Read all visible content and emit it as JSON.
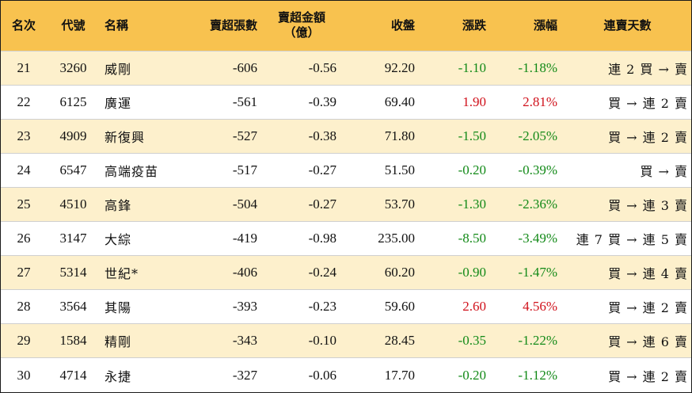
{
  "headers": {
    "rank": "名次",
    "code": "代號",
    "name": "名稱",
    "sell_lots": "賣超張數",
    "sell_amount": "賣超金額",
    "sell_amount_unit": "（億）",
    "close": "收盤",
    "change": "漲跌",
    "change_pct": "漲幅",
    "streak": "連賣天數"
  },
  "rows": [
    {
      "rank": "21",
      "code": "3260",
      "name": "威剛",
      "sell_lots": "-606",
      "sell_amount": "-0.56",
      "close": "92.20",
      "change": "-1.10",
      "change_pct": "-1.18%",
      "streak": "連 2 買 → 賣",
      "dir": "neg"
    },
    {
      "rank": "22",
      "code": "6125",
      "name": "廣運",
      "sell_lots": "-561",
      "sell_amount": "-0.39",
      "close": "69.40",
      "change": "1.90",
      "change_pct": "2.81%",
      "streak": "買 → 連 2 賣",
      "dir": "pos"
    },
    {
      "rank": "23",
      "code": "4909",
      "name": "新復興",
      "sell_lots": "-527",
      "sell_amount": "-0.38",
      "close": "71.80",
      "change": "-1.50",
      "change_pct": "-2.05%",
      "streak": "買 → 連 2 賣",
      "dir": "neg"
    },
    {
      "rank": "24",
      "code": "6547",
      "name": "高端疫苗",
      "sell_lots": "-517",
      "sell_amount": "-0.27",
      "close": "51.50",
      "change": "-0.20",
      "change_pct": "-0.39%",
      "streak": "買 → 賣",
      "dir": "neg"
    },
    {
      "rank": "25",
      "code": "4510",
      "name": "高鋒",
      "sell_lots": "-504",
      "sell_amount": "-0.27",
      "close": "53.70",
      "change": "-1.30",
      "change_pct": "-2.36%",
      "streak": "買 → 連 3 賣",
      "dir": "neg"
    },
    {
      "rank": "26",
      "code": "3147",
      "name": "大綜",
      "sell_lots": "-419",
      "sell_amount": "-0.98",
      "close": "235.00",
      "change": "-8.50",
      "change_pct": "-3.49%",
      "streak": "連 7 買 → 連 5 賣",
      "dir": "neg"
    },
    {
      "rank": "27",
      "code": "5314",
      "name": "世紀*",
      "sell_lots": "-406",
      "sell_amount": "-0.24",
      "close": "60.20",
      "change": "-0.90",
      "change_pct": "-1.47%",
      "streak": "買 → 連 4 賣",
      "dir": "neg"
    },
    {
      "rank": "28",
      "code": "3564",
      "name": "其陽",
      "sell_lots": "-393",
      "sell_amount": "-0.23",
      "close": "59.60",
      "change": "2.60",
      "change_pct": "4.56%",
      "streak": "買 → 連 2 賣",
      "dir": "pos"
    },
    {
      "rank": "29",
      "code": "1584",
      "name": "精剛",
      "sell_lots": "-343",
      "sell_amount": "-0.10",
      "close": "28.45",
      "change": "-0.35",
      "change_pct": "-1.22%",
      "streak": "買 → 連 6 賣",
      "dir": "neg"
    },
    {
      "rank": "30",
      "code": "4714",
      "name": "永捷",
      "sell_lots": "-327",
      "sell_amount": "-0.06",
      "close": "17.70",
      "change": "-0.20",
      "change_pct": "-1.12%",
      "streak": "買 → 連 2 賣",
      "dir": "neg"
    }
  ],
  "colors": {
    "header_bg": "#f8c24f",
    "odd_row_bg": "#fdf0cc",
    "even_row_bg": "#ffffff",
    "up": "#d0111b",
    "down": "#138a18"
  }
}
